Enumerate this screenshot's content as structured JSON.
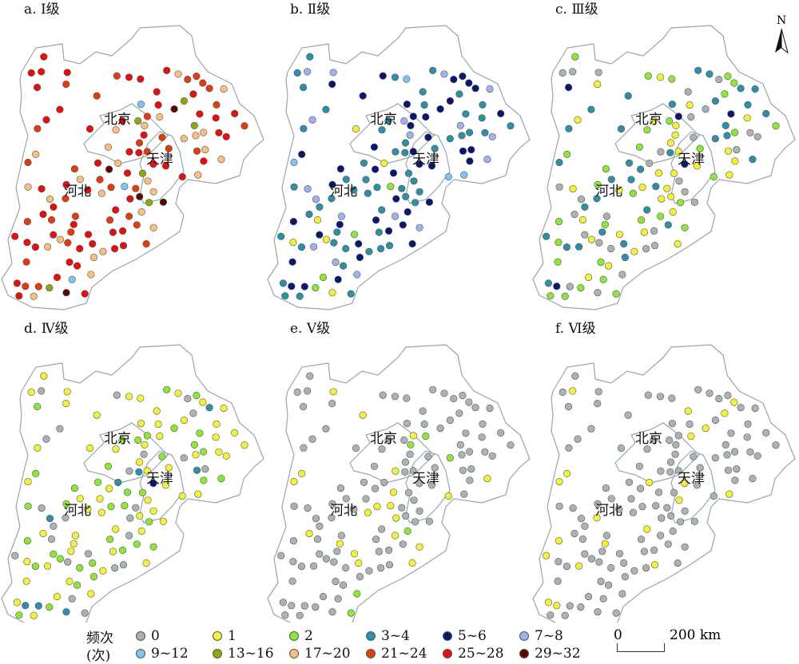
{
  "legend": {
    "header_line1": "频次",
    "header_line2": "(次)",
    "classes": [
      {
        "label": "0",
        "color": "#a9b3b6"
      },
      {
        "label": "1",
        "color": "#f2f23a"
      },
      {
        "label": "2",
        "color": "#8ee63a"
      },
      {
        "label": "3~4",
        "color": "#2f8fa6"
      },
      {
        "label": "5~6",
        "color": "#0a1670"
      },
      {
        "label": "7~8",
        "color": "#9fb2ee"
      },
      {
        "label": "9~12",
        "color": "#7cc6f5"
      },
      {
        "label": "13~16",
        "color": "#8ea814"
      },
      {
        "label": "17~20",
        "color": "#f7c07f"
      },
      {
        "label": "21~24",
        "color": "#e03c10"
      },
      {
        "label": "25~28",
        "color": "#e40f0f"
      },
      {
        "label": "29~32",
        "color": "#5c0606"
      }
    ]
  },
  "scale_bar": {
    "start": "0",
    "end": "200 km"
  },
  "north_label": "N",
  "city_labels": {
    "beijing": "北京",
    "tianjin": "天津",
    "hebei": "河北"
  },
  "panels": [
    {
      "title": "a. Ⅰ级",
      "classes": "9a8a98a9a87a99a8b9a8a98a9a6a989a8a7a9a8a89a9ba8a98a9a8a97a9a8a9a8a6a9b9a8a9a8a97a9a8a9b8a98a7a9a8a9a9a8a6a9a8a7a9a8b9a8a"
    },
    {
      "title": "b. Ⅱ级",
      "classes": "343543143453436143543435432343435343425334354363435343415343434353436134534343524343534343543436134343534342533435434343"
    },
    {
      "title": "c. Ⅲ级",
      "classes": "123012303123412031203130213241203130212303120312031230413021302130213021302413021302130213021302130213023021342130213021302130213021"
    },
    {
      "title": "d. Ⅳ级",
      "classes": "121012130121201312102101212131201210212312101210210121402121210121021312101210122121012101312101210212101210122101213121"
    },
    {
      "title": "e. Ⅴ级",
      "classes": "000010000200100001000020001000010000001000010002000010000100000010001001000020000001000010010001000000200001000001000010"
    },
    {
      "title": "f. Ⅵ级",
      "classes": "000100000001000100000000100010001000000010000010000000100000010000001000010001000000001000010000010000010010000010000010000000"
    }
  ]
}
